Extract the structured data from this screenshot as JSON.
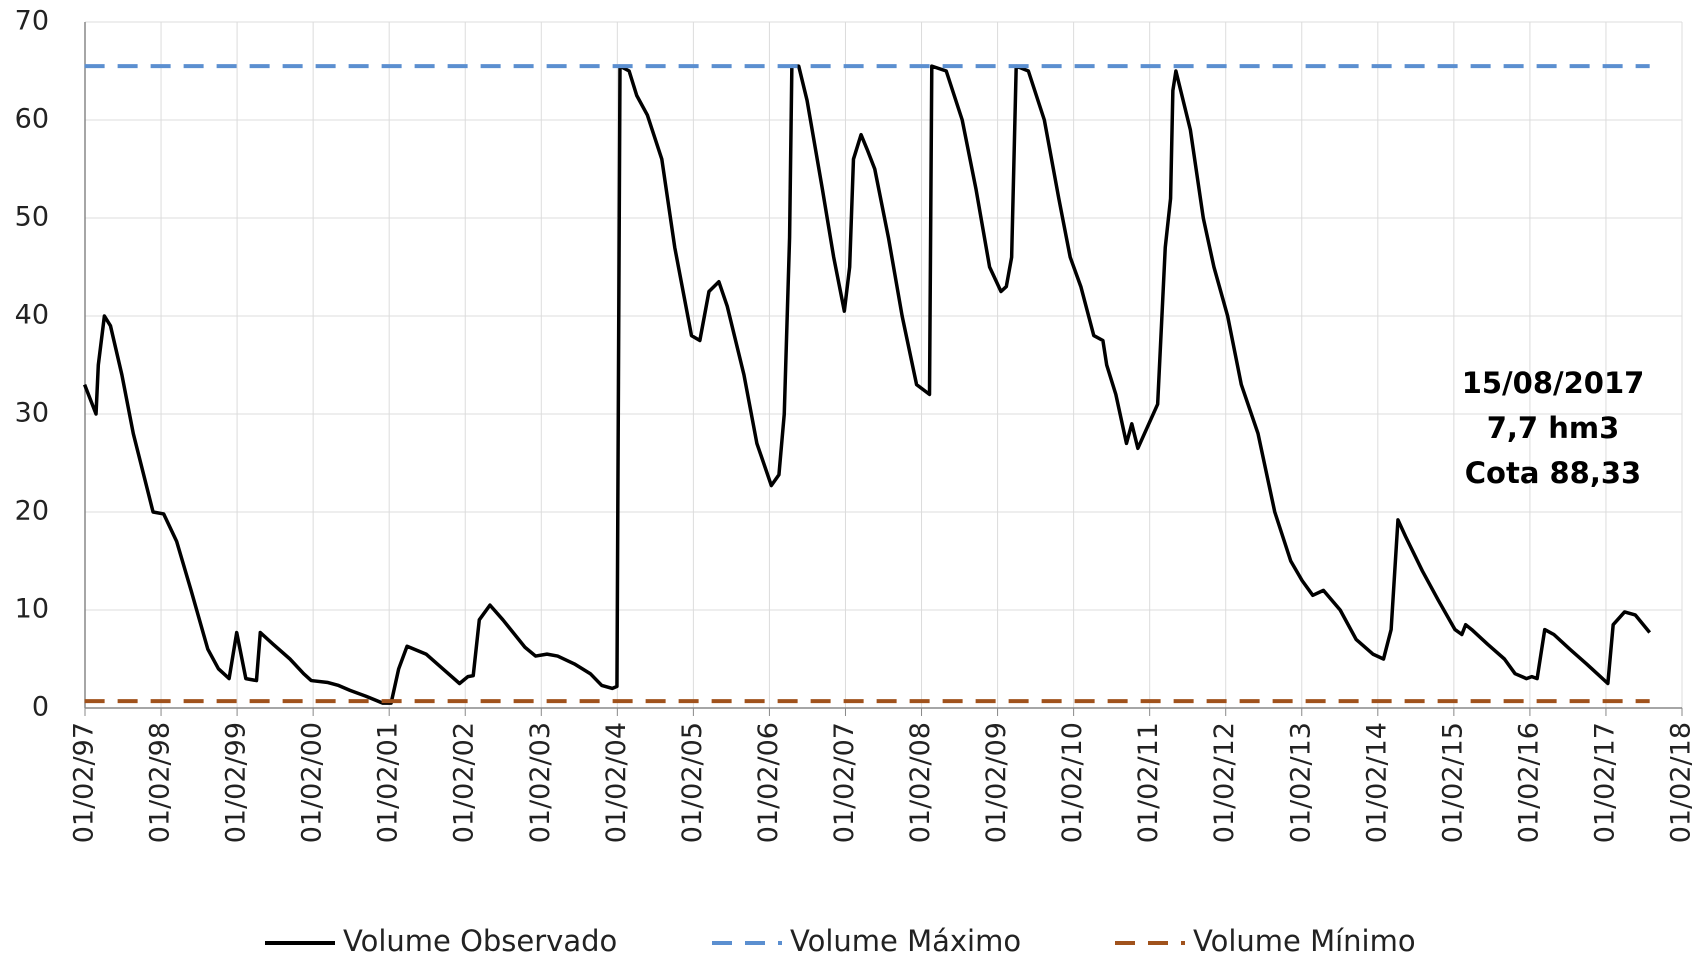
{
  "chart_data": {
    "type": "line",
    "xlim": [
      1997.085,
      2018.085
    ],
    "xticks": [
      {
        "value": 1997.085,
        "label": "01/02/97"
      },
      {
        "value": 1998.085,
        "label": "01/02/98"
      },
      {
        "value": 1999.085,
        "label": "01/02/99"
      },
      {
        "value": 2000.085,
        "label": "01/02/00"
      },
      {
        "value": 2001.085,
        "label": "01/02/01"
      },
      {
        "value": 2002.085,
        "label": "01/02/02"
      },
      {
        "value": 2003.085,
        "label": "01/02/03"
      },
      {
        "value": 2004.085,
        "label": "01/02/04"
      },
      {
        "value": 2005.085,
        "label": "01/02/05"
      },
      {
        "value": 2006.085,
        "label": "01/02/06"
      },
      {
        "value": 2007.085,
        "label": "01/02/07"
      },
      {
        "value": 2008.085,
        "label": "01/02/08"
      },
      {
        "value": 2009.085,
        "label": "01/02/09"
      },
      {
        "value": 2010.085,
        "label": "01/02/10"
      },
      {
        "value": 2011.085,
        "label": "01/02/11"
      },
      {
        "value": 2012.085,
        "label": "01/02/12"
      },
      {
        "value": 2013.085,
        "label": "01/02/13"
      },
      {
        "value": 2014.085,
        "label": "01/02/14"
      },
      {
        "value": 2015.085,
        "label": "01/02/15"
      },
      {
        "value": 2016.085,
        "label": "01/02/16"
      },
      {
        "value": 2017.085,
        "label": "01/02/17"
      },
      {
        "value": 2018.085,
        "label": "01/02/18"
      }
    ],
    "ylim": [
      0,
      70
    ],
    "yticks": [
      0,
      10,
      20,
      30,
      40,
      50,
      60,
      70
    ],
    "grid": true,
    "legend": "bottom",
    "annotation": [
      "15/08/2017",
      "7,7 hm3",
      "Cota 88,33"
    ],
    "series": [
      {
        "name": "Volume Observado",
        "color": "#000000",
        "dash": false,
        "x": [
          1997.08,
          1997.23,
          1997.26,
          1997.34,
          1997.42,
          1997.57,
          1997.72,
          1997.98,
          1998.12,
          1998.29,
          1998.48,
          1998.7,
          1998.84,
          1998.98,
          1999.08,
          1999.2,
          1999.34,
          1999.39,
          1999.56,
          1999.78,
          1999.96,
          2000.06,
          2000.28,
          2000.42,
          2000.57,
          2000.78,
          2001.0,
          2001.11,
          2001.21,
          2001.32,
          2001.57,
          2001.79,
          2002.01,
          2002.12,
          2002.19,
          2002.27,
          2002.41,
          2002.58,
          2002.87,
          2003.01,
          2003.16,
          2003.3,
          2003.52,
          2003.73,
          2003.88,
          2004.02,
          2004.08,
          2004.12,
          2004.24,
          2004.34,
          2004.48,
          2004.67,
          2004.84,
          2005.06,
          2005.17,
          2005.29,
          2005.42,
          2005.53,
          2005.75,
          2005.92,
          2006.11,
          2006.21,
          2006.28,
          2006.35,
          2006.38,
          2006.47,
          2006.58,
          2006.78,
          2006.93,
          2007.07,
          2007.14,
          2007.19,
          2007.29,
          2007.37,
          2007.47,
          2007.65,
          2007.83,
          2008.02,
          2008.19,
          2008.22,
          2008.41,
          2008.62,
          2008.8,
          2008.98,
          2009.13,
          2009.2,
          2009.27,
          2009.33,
          2009.49,
          2009.7,
          2009.89,
          2010.04,
          2010.18,
          2010.35,
          2010.47,
          2010.52,
          2010.64,
          2010.78,
          2010.85,
          2010.93,
          2011.19,
          2011.29,
          2011.36,
          2011.39,
          2011.43,
          2011.62,
          2011.79,
          2011.93,
          2012.11,
          2012.29,
          2012.51,
          2012.73,
          2012.94,
          2013.09,
          2013.23,
          2013.37,
          2013.59,
          2013.8,
          2014.02,
          2014.16,
          2014.26,
          2014.35,
          2014.45,
          2014.67,
          2014.88,
          2015.1,
          2015.19,
          2015.24,
          2015.32,
          2015.53,
          2015.75,
          2015.89,
          2016.04,
          2016.11,
          2016.18,
          2016.28,
          2016.4,
          2016.61,
          2016.83,
          2016.97,
          2017.11,
          2017.18,
          2017.33,
          2017.47,
          2017.66
        ],
        "values": [
          33,
          30,
          35,
          40,
          39,
          34,
          28,
          20,
          19.8,
          17,
          12,
          6,
          4,
          3,
          7.7,
          3,
          2.8,
          7.7,
          6.5,
          5,
          3.5,
          2.8,
          2.6,
          2.3,
          1.8,
          1.2,
          0.5,
          0.5,
          4,
          6.3,
          5.5,
          4,
          2.5,
          3.2,
          3.3,
          9,
          10.5,
          9,
          6.2,
          5.3,
          5.5,
          5.3,
          4.5,
          3.5,
          2.3,
          2,
          2.2,
          65.5,
          65,
          62.5,
          60.5,
          56,
          47,
          38,
          37.5,
          42.5,
          43.5,
          41,
          34,
          27,
          22.7,
          23.8,
          30,
          48,
          65.5,
          65.5,
          62,
          53,
          46,
          40.5,
          45,
          56,
          58.5,
          57,
          55,
          48,
          40,
          33,
          32,
          65.5,
          65,
          60,
          53,
          45,
          42.5,
          43,
          46,
          65.5,
          65,
          60,
          52,
          46,
          43,
          38,
          37.5,
          35,
          32,
          27,
          29,
          26.5,
          31,
          47,
          52,
          63,
          65,
          59,
          50,
          45,
          40,
          33,
          28,
          20,
          15,
          13,
          11.5,
          12,
          10,
          7,
          5.5,
          5,
          8,
          19.2,
          17.5,
          14,
          11,
          8,
          7.5,
          8.5,
          8,
          6.5,
          5,
          3.5,
          3,
          3.2,
          3,
          8,
          7.5,
          6,
          4.5,
          3.5,
          2.5,
          8.5,
          9.8,
          9.5,
          7.7
        ]
      },
      {
        "name": "Volume Máximo",
        "color": "#5b8fd0",
        "dash": true,
        "x": [
          1997.08,
          2017.66
        ],
        "values": [
          65.5,
          65.5
        ]
      },
      {
        "name": "Volume Mínimo",
        "color": "#a0521c",
        "dash": true,
        "x": [
          1997.08,
          2017.66
        ],
        "values": [
          0.7,
          0.7
        ]
      }
    ]
  }
}
